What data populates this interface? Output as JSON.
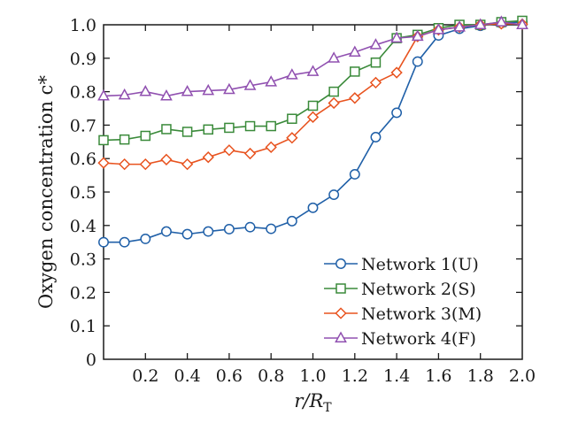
{
  "chart_data": {
    "type": "line",
    "x": [
      0,
      0.1,
      0.2,
      0.3,
      0.4,
      0.5,
      0.6,
      0.7,
      0.8,
      0.9,
      1.0,
      1.1,
      1.2,
      1.3,
      1.4,
      1.5,
      1.6,
      1.7,
      1.8,
      1.9,
      2.0
    ],
    "series": [
      {
        "name": "Network 1(U)",
        "color": "#2060a8",
        "marker": "circle",
        "values": [
          0.35,
          0.35,
          0.36,
          0.382,
          0.374,
          0.382,
          0.389,
          0.395,
          0.39,
          0.413,
          0.453,
          0.492,
          0.553,
          0.664,
          0.737,
          0.89,
          0.968,
          0.988,
          0.997,
          1.005,
          1.008
        ]
      },
      {
        "name": "Network 2(S)",
        "color": "#3a8a3a",
        "marker": "square",
        "values": [
          0.655,
          0.657,
          0.668,
          0.688,
          0.68,
          0.687,
          0.692,
          0.697,
          0.697,
          0.719,
          0.758,
          0.8,
          0.86,
          0.887,
          0.96,
          0.97,
          0.99,
          1.0,
          1.0,
          1.008,
          1.012
        ]
      },
      {
        "name": "Network 3(M)",
        "color": "#e8531f",
        "marker": "diamond",
        "values": [
          0.587,
          0.583,
          0.583,
          0.597,
          0.583,
          0.604,
          0.625,
          0.615,
          0.634,
          0.662,
          0.724,
          0.766,
          0.781,
          0.827,
          0.857,
          0.965,
          0.985,
          0.993,
          1.0,
          1.003,
          1.002
        ]
      },
      {
        "name": "Network 4(F)",
        "color": "#9050b0",
        "marker": "triangle",
        "values": [
          0.787,
          0.79,
          0.8,
          0.787,
          0.8,
          0.803,
          0.806,
          0.818,
          0.829,
          0.85,
          0.86,
          0.9,
          0.918,
          0.94,
          0.96,
          0.965,
          0.985,
          0.993,
          1.0,
          1.008,
          1.0
        ]
      }
    ],
    "xlabel": {
      "prefix": "r/R",
      "subscript": "T"
    },
    "ylabel": "Oxygen concentration c*",
    "xlim": [
      0,
      2.0
    ],
    "ylim": [
      0,
      1.0
    ],
    "xticks": [
      0.2,
      0.4,
      0.6,
      0.8,
      1.0,
      1.2,
      1.4,
      1.6,
      1.8,
      2.0
    ],
    "xtick_labels": [
      "0.2",
      "0.4",
      "0.6",
      "0.8",
      "1.0",
      "1.2",
      "1.4",
      "1.6",
      "1.8",
      "2.0"
    ],
    "yticks": [
      0,
      0.1,
      0.2,
      0.3,
      0.4,
      0.5,
      0.6,
      0.7,
      0.8,
      0.9,
      1.0
    ],
    "ytick_labels": [
      "0",
      "0.1",
      "0.2",
      "0.3",
      "0.4",
      "0.5",
      "0.6",
      "0.7",
      "0.8",
      "0.9",
      "1.0"
    ],
    "grid": false,
    "legend_position": "bottom-right"
  }
}
